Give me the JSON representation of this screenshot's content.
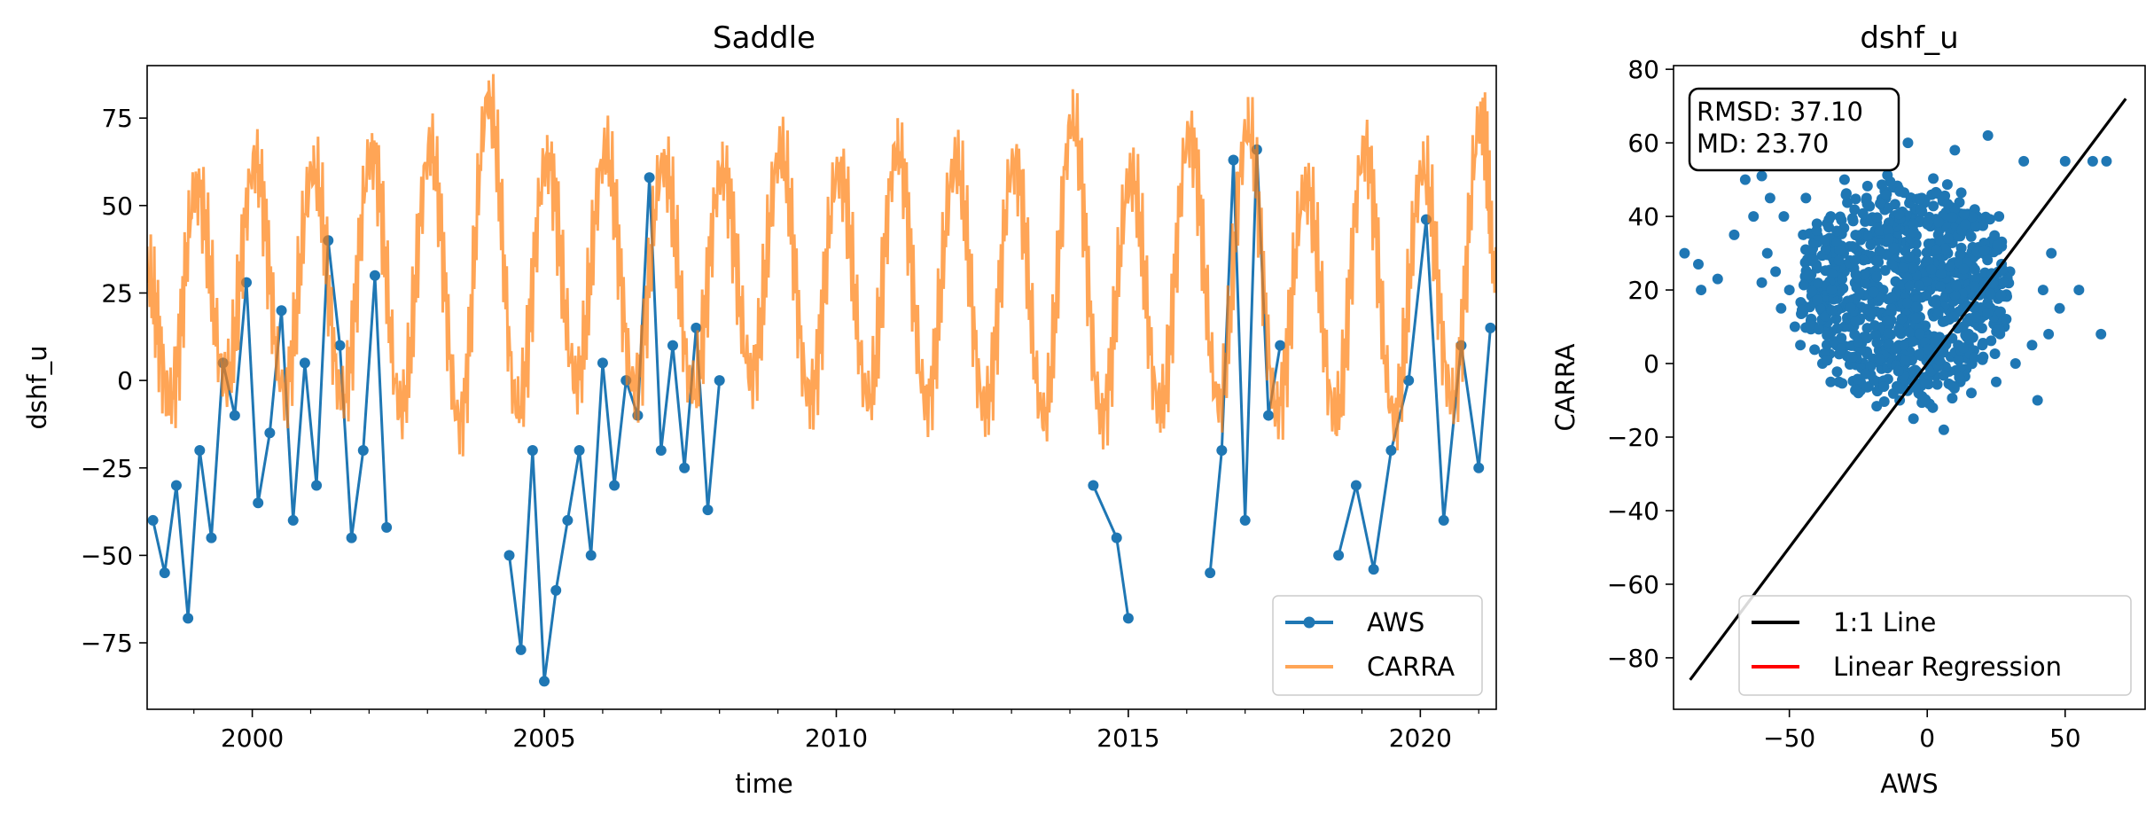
{
  "chart_data": [
    {
      "type": "line",
      "title": "Saddle",
      "xlabel": "time",
      "ylabel": "dshf_u",
      "xlim": [
        1998.2,
        2021.3
      ],
      "ylim": [
        -94,
        90
      ],
      "xticks": [
        2000,
        2005,
        2010,
        2015,
        2020
      ],
      "xtick_labels": [
        "2000",
        "2005",
        "2010",
        "2015",
        "2020"
      ],
      "yticks": [
        -75,
        -50,
        -25,
        0,
        25,
        50,
        75
      ],
      "ytick_labels": [
        "−75",
        "−50",
        "−25",
        "0",
        "25",
        "50",
        "75"
      ],
      "legend": {
        "placement": "lower-right",
        "entries": [
          "AWS",
          "CARRA"
        ]
      },
      "series": [
        {
          "name": "CARRA",
          "color": "#ff7f0e",
          "marker": "none",
          "description": "seasonal cycle, winter peaks ~55-80, summer troughs ~ -15-5",
          "x": [
            1998.2,
            1998.6,
            1999.05,
            1999.55,
            2000.05,
            2000.55,
            2001.05,
            2001.55,
            2002.05,
            2002.55,
            2003.05,
            2003.55,
            2004.05,
            2004.55,
            2005.05,
            2005.55,
            2006.05,
            2006.55,
            2007.05,
            2007.55,
            2008.05,
            2008.55,
            2009.05,
            2009.55,
            2010.05,
            2010.55,
            2011.05,
            2011.55,
            2012.05,
            2012.55,
            2013.05,
            2013.55,
            2014.05,
            2014.55,
            2015.05,
            2015.55,
            2016.05,
            2016.55,
            2017.05,
            2017.55,
            2018.05,
            2018.55,
            2019.05,
            2019.55,
            2020.05,
            2020.55,
            2021.05,
            2021.3
          ],
          "values": [
            30,
            -5,
            55,
            0,
            62,
            -3,
            60,
            -5,
            65,
            -8,
            66,
            -12,
            80,
            -8,
            63,
            0,
            65,
            -2,
            62,
            -3,
            60,
            2,
            65,
            -5,
            60,
            -5,
            66,
            -6,
            62,
            -8,
            62,
            -10,
            74,
            -10,
            58,
            -8,
            70,
            -6,
            72,
            -8,
            55,
            -10,
            66,
            -10,
            60,
            -5,
            75,
            30
          ]
        },
        {
          "name": "AWS",
          "color": "#1f77b4",
          "marker": "circle",
          "description": "sparse observations with gaps 2002.5-2004.3, 2008.2-2014.2, 2017.7-2018.3",
          "x": [
            1998.3,
            1998.5,
            1998.7,
            1998.9,
            1999.1,
            1999.3,
            1999.5,
            1999.7,
            1999.9,
            2000.1,
            2000.3,
            2000.5,
            2000.7,
            2000.9,
            2001.1,
            2001.3,
            2001.5,
            2001.7,
            2001.9,
            2002.1,
            2002.3,
            2004.4,
            2004.6,
            2004.8,
            2005.0,
            2005.2,
            2005.4,
            2005.6,
            2005.8,
            2006.0,
            2006.2,
            2006.4,
            2006.6,
            2006.8,
            2007.0,
            2007.2,
            2007.4,
            2007.6,
            2007.8,
            2008.0,
            2014.4,
            2014.8,
            2015.0,
            2016.4,
            2016.6,
            2016.8,
            2017.0,
            2017.2,
            2017.4,
            2017.6,
            2018.6,
            2018.9,
            2019.2,
            2019.5,
            2019.8,
            2020.1,
            2020.4,
            2020.7,
            2021.0,
            2021.2
          ],
          "values": [
            -40,
            -55,
            -30,
            -68,
            -20,
            -45,
            5,
            -10,
            28,
            -35,
            -15,
            20,
            -40,
            5,
            -30,
            40,
            10,
            -45,
            -20,
            30,
            -42,
            -50,
            -77,
            -20,
            -86,
            -60,
            -40,
            -20,
            -50,
            5,
            -30,
            0,
            -10,
            58,
            -20,
            10,
            -25,
            15,
            -37,
            0,
            -30,
            -45,
            -68,
            -55,
            -20,
            63,
            -40,
            66,
            -10,
            10,
            -50,
            -30,
            -54,
            -20,
            0,
            46,
            -40,
            10,
            -25,
            15
          ]
        }
      ]
    },
    {
      "type": "scatter",
      "title": "dshf_u",
      "xlabel": "AWS",
      "ylabel": "CARRA",
      "xlim": [
        -92,
        79
      ],
      "ylim": [
        -94,
        81
      ],
      "xticks": [
        -50,
        0,
        50
      ],
      "xtick_labels": [
        "−50",
        "0",
        "50"
      ],
      "yticks": [
        -80,
        -60,
        -40,
        -20,
        0,
        20,
        40,
        60,
        80
      ],
      "ytick_labels": [
        "−80",
        "−60",
        "−40",
        "−20",
        "0",
        "20",
        "40",
        "60",
        "80"
      ],
      "stats": {
        "rmsd_label": "RMSD: 37.10",
        "md_label": "MD: 23.70"
      },
      "legend": {
        "placement": "lower-right",
        "entries": [
          "1:1 Line",
          "Linear Regression"
        ]
      },
      "line_1to1": {
        "color": "#000000",
        "x": [
          -86,
          72
        ],
        "y": [
          -86,
          72
        ]
      },
      "regression_color": "#ff0000",
      "points_color": "#1f77b4",
      "points": {
        "x": [
          -88,
          -83,
          -82,
          -76,
          -70,
          -68,
          -66,
          -63,
          -60,
          -60,
          -58,
          -57,
          -55,
          -53,
          -52,
          -50,
          -50,
          -48,
          -46,
          -45,
          -44,
          -42,
          -41,
          -40,
          -38,
          -36,
          -35,
          -33,
          -32,
          -30,
          -30,
          -28,
          -27,
          -25,
          -24,
          -22,
          -20,
          -18,
          -16,
          -15,
          -14,
          -12,
          -10,
          -9,
          -8,
          -7,
          -5,
          -4,
          -3,
          -2,
          0,
          1,
          2,
          3,
          4,
          5,
          6,
          8,
          9,
          10,
          12,
          13,
          15,
          16,
          18,
          20,
          22,
          23,
          25,
          26,
          28,
          30,
          32,
          35,
          38,
          40,
          42,
          44,
          45,
          48,
          50,
          55,
          60,
          63,
          65,
          -30,
          -20,
          -10,
          0,
          10,
          -35,
          -25,
          -15,
          -5,
          5,
          15,
          -40,
          -22,
          -12,
          -2,
          8,
          18,
          -28,
          -18,
          -8,
          2
        ],
        "y": [
          30,
          27,
          20,
          23,
          35,
          62,
          50,
          40,
          22,
          51,
          30,
          45,
          25,
          15,
          40,
          20,
          55,
          10,
          5,
          35,
          45,
          30,
          10,
          20,
          0,
          15,
          40,
          5,
          -5,
          25,
          50,
          10,
          0,
          -8,
          30,
          45,
          55,
          -5,
          20,
          10,
          65,
          40,
          -10,
          25,
          0,
          60,
          -15,
          30,
          10,
          45,
          -5,
          20,
          -12,
          5,
          35,
          0,
          -18,
          15,
          25,
          58,
          -5,
          10,
          20,
          -8,
          30,
          5,
          62,
          15,
          -5,
          40,
          10,
          25,
          0,
          55,
          5,
          -10,
          20,
          8,
          30,
          15,
          55,
          20,
          55,
          8,
          55,
          10,
          35,
          20,
          28,
          38,
          -5,
          15,
          45,
          12,
          25,
          5,
          38,
          22,
          30,
          18,
          12,
          40,
          28,
          8,
          33,
          0
        ]
      }
    }
  ]
}
